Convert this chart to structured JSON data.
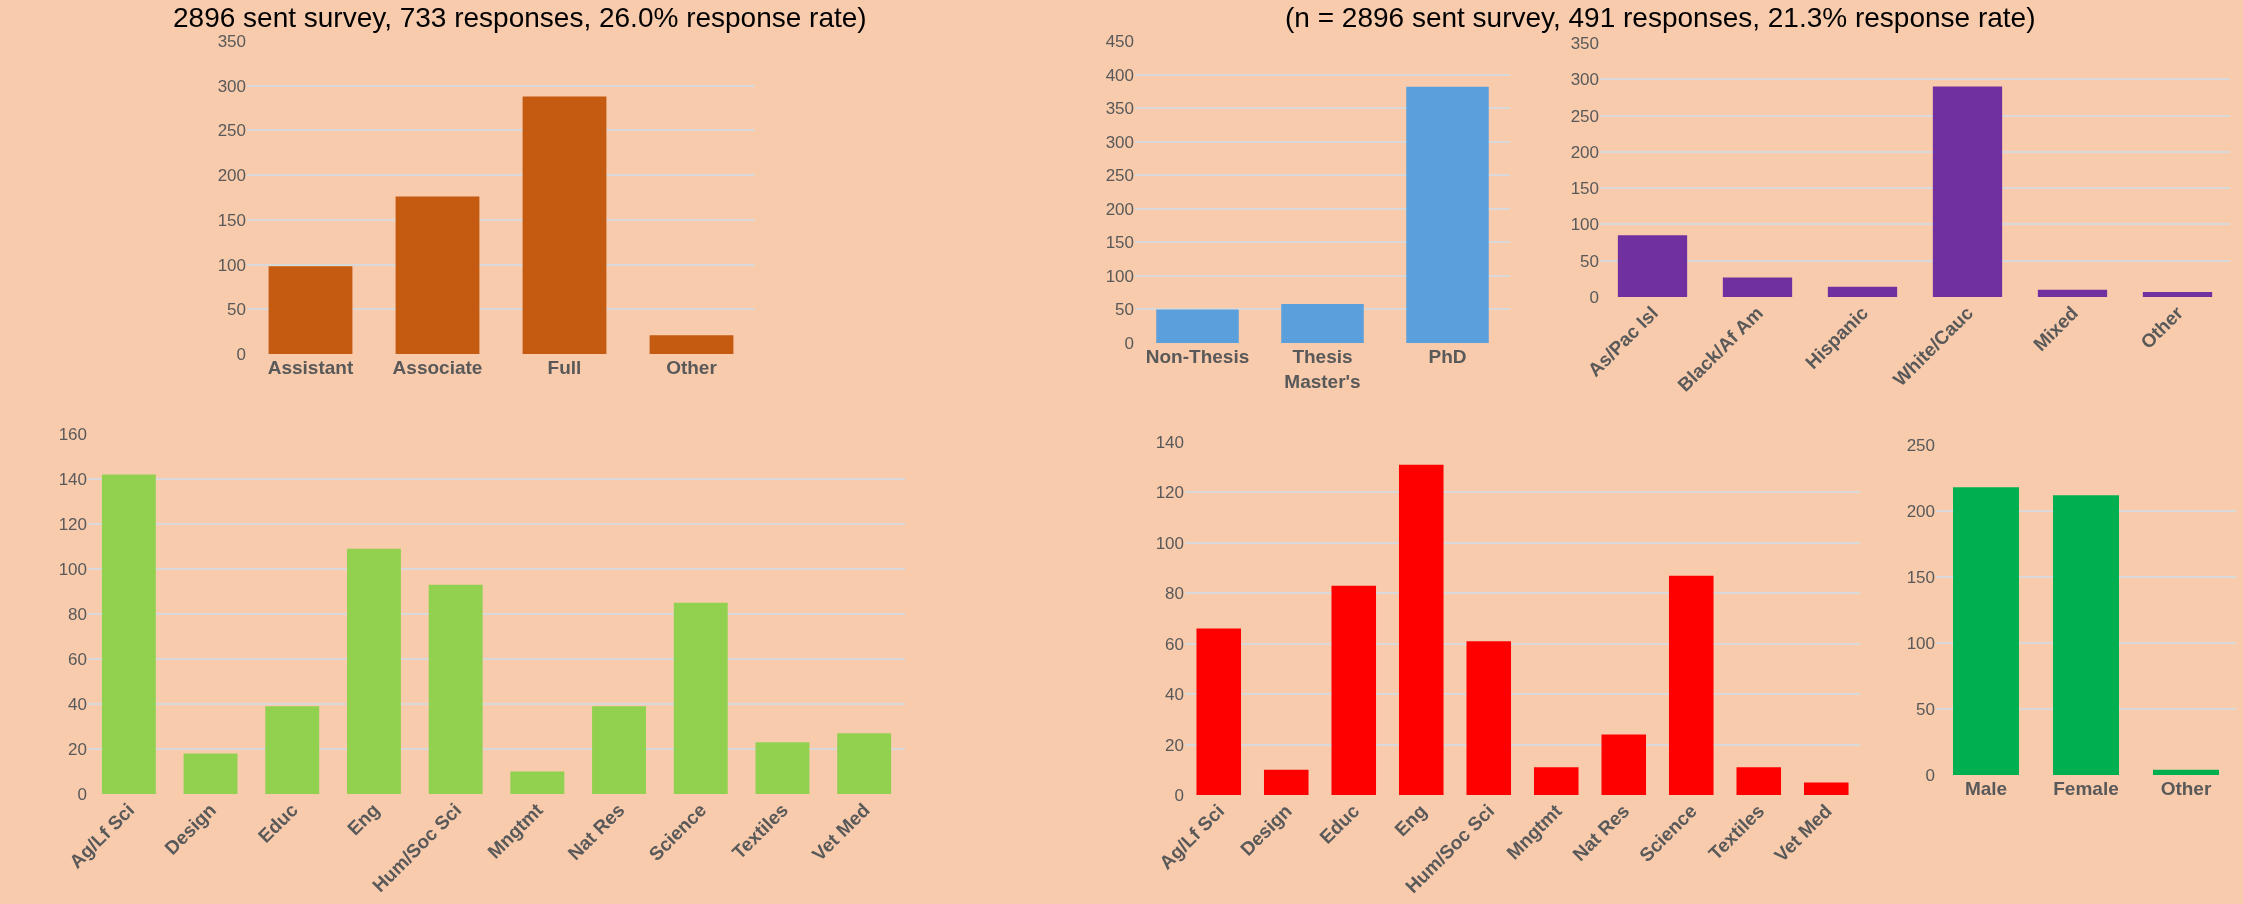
{
  "chart_data": [
    {
      "type": "bar",
      "title": "2896 sent survey, 733 responses, 26.0% response rate)",
      "categories": [
        "Assistant",
        "Associate",
        "Full",
        "Other"
      ],
      "values": [
        98,
        176,
        288,
        21
      ],
      "color": "#c55a11",
      "ylim": [
        0,
        350
      ],
      "yticks": [
        0,
        50,
        100,
        150,
        200,
        250,
        300,
        350
      ],
      "grid": "y"
    },
    {
      "type": "bar",
      "title": "(n = 2896 sent survey, 491 responses, 21.3% response rate)",
      "categories": [
        "Non-Thesis",
        "Thesis Master's",
        "PhD"
      ],
      "values": [
        50,
        58,
        382
      ],
      "color": "#5b9fdd",
      "ylim": [
        0,
        450
      ],
      "yticks": [
        0,
        50,
        100,
        150,
        200,
        250,
        300,
        350,
        400,
        450
      ],
      "grid": "y"
    },
    {
      "type": "bar",
      "categories": [
        "As/Pac Isl",
        "Black/Af Am",
        "Hispanic",
        "White/Cauc",
        "Mixed",
        "Other"
      ],
      "values": [
        85,
        27,
        14,
        290,
        10,
        7
      ],
      "color": "#7030a0",
      "ylim": [
        0,
        350
      ],
      "yticks": [
        0,
        50,
        100,
        150,
        200,
        250,
        300,
        350
      ],
      "grid": "y"
    },
    {
      "type": "bar",
      "categories": [
        "Ag/Lf Sci",
        "Design",
        "Educ",
        "Eng",
        "Hum/Soc Sci",
        "Mngtmt",
        "Nat Res",
        "Science",
        "Textiles",
        "Vet Med"
      ],
      "values": [
        142,
        18,
        39,
        109,
        93,
        10,
        39,
        85,
        23,
        27
      ],
      "color": "#92d050",
      "ylim": [
        0,
        160
      ],
      "yticks": [
        0,
        20,
        40,
        60,
        80,
        100,
        120,
        140,
        160
      ],
      "grid": "y"
    },
    {
      "type": "bar",
      "categories": [
        "Ag/Lf Sci",
        "Design",
        "Educ",
        "Eng",
        "Hum/Soc Sci",
        "Mngtmt",
        "Nat Res",
        "Science",
        "Textiles",
        "Vet Med"
      ],
      "values": [
        66,
        10,
        83,
        131,
        61,
        11,
        24,
        87,
        11,
        5
      ],
      "color": "#ff0000",
      "ylim": [
        0,
        140
      ],
      "yticks": [
        0,
        20,
        40,
        60,
        80,
        100,
        120,
        140
      ],
      "grid": "y"
    },
    {
      "type": "bar",
      "categories": [
        "Male",
        "Female",
        "Other"
      ],
      "values": [
        218,
        212,
        4
      ],
      "color": "#00b050",
      "ylim": [
        0,
        250
      ],
      "yticks": [
        0,
        50,
        100,
        150,
        200,
        250
      ],
      "grid": "y"
    }
  ]
}
